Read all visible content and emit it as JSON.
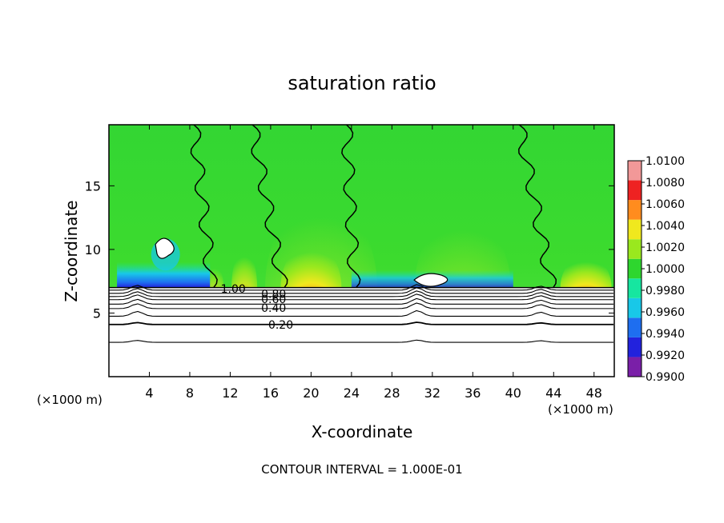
{
  "chart_data": {
    "type": "heatmap",
    "title": "saturation ratio",
    "xlabel": "X-coordinate",
    "ylabel": "Z-coordinate",
    "x_unit_left": "(×1000 m)",
    "x_unit_right": "(×1000 m)",
    "footer": "CONTOUR INTERVAL = 1.000E-01",
    "xlim": [
      0,
      50
    ],
    "ylim": [
      0,
      19.8
    ],
    "x_ticks": [
      4,
      8,
      12,
      16,
      20,
      24,
      28,
      32,
      36,
      40,
      44,
      48
    ],
    "x_tick_labels": [
      "4",
      "8",
      "12",
      "16",
      "20",
      "24",
      "28",
      "32",
      "36",
      "40",
      "44",
      "48"
    ],
    "y_ticks": [
      5,
      10,
      15
    ],
    "y_tick_labels": [
      "5",
      "10",
      "15"
    ],
    "colorbar": {
      "levels": [
        0.99,
        0.992,
        0.994,
        0.996,
        0.998,
        1.0,
        1.002,
        1.004,
        1.006,
        1.008,
        1.01
      ],
      "labels": [
        "0.9900",
        "0.9920",
        "0.9940",
        "0.9960",
        "0.9980",
        "1.0000",
        "1.0020",
        "1.0040",
        "1.0060",
        "1.0080",
        "1.0100"
      ],
      "colors": [
        "#7a1fa8",
        "#2222dd",
        "#1e6ef0",
        "#18c8e8",
        "#16e6a0",
        "#2ed62e",
        "#9ae81e",
        "#f0e81e",
        "#ff8c1e",
        "#ee2222",
        "#f29898"
      ]
    },
    "contour_labels": [
      {
        "text": "1.00",
        "x": 12.3,
        "y": 6.9
      },
      {
        "text": "0.80",
        "x": 16.3,
        "y": 6.5
      },
      {
        "text": "0.60",
        "x": 16.3,
        "y": 6.1
      },
      {
        "text": "0.40",
        "x": 16.3,
        "y": 5.4
      },
      {
        "text": "0.20",
        "x": 17.0,
        "y": 4.1
      }
    ],
    "lower_contours": [
      6.8,
      6.55,
      6.3,
      6.05,
      5.7,
      5.35,
      4.75,
      4.1,
      2.7
    ],
    "boundary_height": 7.0,
    "grid": false,
    "legend": "colorbar-right"
  }
}
